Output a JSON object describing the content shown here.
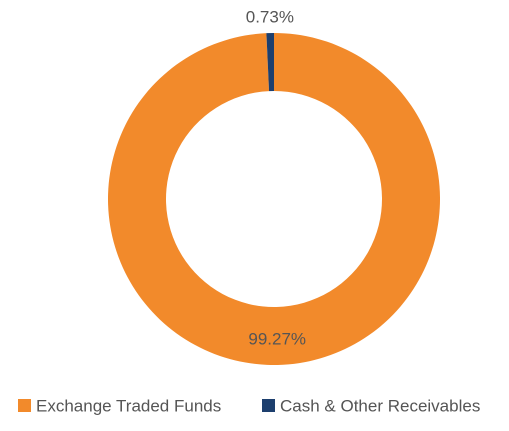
{
  "chart_data": {
    "type": "donut",
    "categories": [
      "Exchange Traded Funds",
      "Cash & Other Receivables"
    ],
    "values": [
      99.27,
      0.73
    ],
    "value_labels": [
      "99.27%",
      "0.73%"
    ],
    "colors": [
      "#f28a2b",
      "#1d3f6e"
    ],
    "legend": "bottom"
  }
}
